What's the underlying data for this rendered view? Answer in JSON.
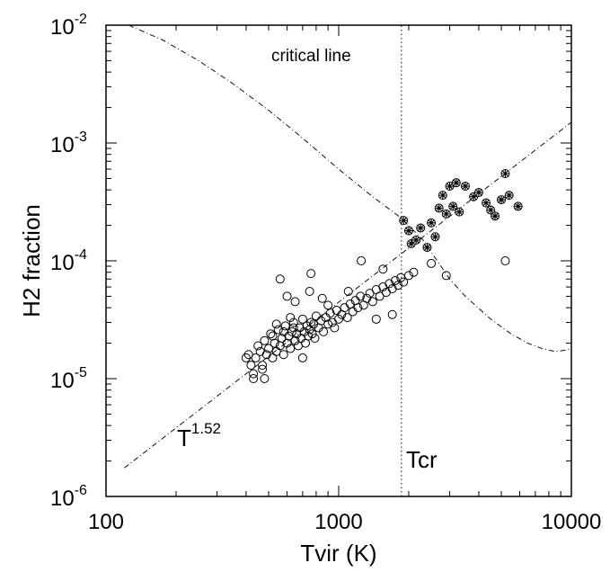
{
  "chart_data": {
    "type": "scatter",
    "xlabel": "Tvir (K)",
    "ylabel": "H2 fraction",
    "x_scale": "log",
    "y_scale": "log",
    "xlim": [
      100,
      10000
    ],
    "ylim": [
      1e-06,
      0.01
    ],
    "x_ticks": [
      {
        "value": 100,
        "label": "100"
      },
      {
        "value": 1000,
        "label": "1000"
      },
      {
        "value": 10000,
        "label": "10000"
      }
    ],
    "y_ticks": [
      {
        "value": 1e-06,
        "base": "10",
        "exp": "-6"
      },
      {
        "value": 1e-05,
        "base": "10",
        "exp": "-5"
      },
      {
        "value": 0.0001,
        "base": "10",
        "exp": "-4"
      },
      {
        "value": 0.001,
        "base": "10",
        "exp": "-3"
      },
      {
        "value": 0.01,
        "base": "10",
        "exp": "-2"
      }
    ],
    "grid": false,
    "annotations": {
      "critical_line": "critical line",
      "power_law_base": "T",
      "power_law_exp": "1.52",
      "tcr": "Tcr"
    },
    "tcr_value": 1860,
    "series": [
      {
        "marker": "open-circle",
        "points": [
          [
            410,
            1.6e-05
          ],
          [
            420,
            1.3e-05
          ],
          [
            430,
            1.1e-05
          ],
          [
            440,
            1.5e-05
          ],
          [
            450,
            1.9e-05
          ],
          [
            460,
            1.7e-05
          ],
          [
            470,
            1.2e-05
          ],
          [
            480,
            2.1e-05
          ],
          [
            490,
            1.6e-05
          ],
          [
            500,
            1.8e-05
          ],
          [
            510,
            2.4e-05
          ],
          [
            520,
            1.5e-05
          ],
          [
            530,
            2e-05
          ],
          [
            540,
            1.7e-05
          ],
          [
            550,
            2.6e-05
          ],
          [
            560,
            1.9e-05
          ],
          [
            570,
            2.2e-05
          ],
          [
            580,
            1.6e-05
          ],
          [
            590,
            2.8e-05
          ],
          [
            600,
            2e-05
          ],
          [
            610,
            2.3e-05
          ],
          [
            620,
            1.8e-05
          ],
          [
            630,
            2.5e-05
          ],
          [
            640,
            3e-05
          ],
          [
            650,
            2.1e-05
          ],
          [
            660,
            2.4e-05
          ],
          [
            670,
            1.9e-05
          ],
          [
            680,
            2.7e-05
          ],
          [
            690,
            2.2e-05
          ],
          [
            700,
            3.2e-05
          ],
          [
            710,
            2.5e-05
          ],
          [
            720,
            2e-05
          ],
          [
            730,
            2.8e-05
          ],
          [
            740,
            2.3e-05
          ],
          [
            750,
            2.6e-05
          ],
          [
            760,
            3e-05
          ],
          [
            770,
            2.4e-05
          ],
          [
            780,
            2.9e-05
          ],
          [
            790,
            2.2e-05
          ],
          [
            800,
            3.4e-05
          ],
          [
            820,
            2.7e-05
          ],
          [
            840,
            3.1e-05
          ],
          [
            860,
            2.5e-05
          ],
          [
            880,
            3.3e-05
          ],
          [
            900,
            2.9e-05
          ],
          [
            920,
            3.6e-05
          ],
          [
            940,
            3e-05
          ],
          [
            960,
            2.7e-05
          ],
          [
            980,
            3.8e-05
          ],
          [
            1000,
            3.2e-05
          ],
          [
            1030,
            3.5e-05
          ],
          [
            1060,
            4e-05
          ],
          [
            1090,
            3.3e-05
          ],
          [
            1120,
            4.3e-05
          ],
          [
            1150,
            3.7e-05
          ],
          [
            1180,
            4.6e-05
          ],
          [
            1210,
            4e-05
          ],
          [
            1240,
            5e-05
          ],
          [
            1280,
            4.2e-05
          ],
          [
            1320,
            4.8e-05
          ],
          [
            1360,
            5.3e-05
          ],
          [
            1400,
            4.5e-05
          ],
          [
            1450,
            5.7e-05
          ],
          [
            1500,
            5e-05
          ],
          [
            1550,
            6e-05
          ],
          [
            1600,
            5.4e-05
          ],
          [
            1650,
            6.4e-05
          ],
          [
            1700,
            5.8e-05
          ],
          [
            1750,
            6.8e-05
          ],
          [
            1800,
            6.2e-05
          ],
          [
            1850,
            7.2e-05
          ],
          [
            1900,
            6.6e-05
          ],
          [
            2000,
            7.5e-05
          ],
          [
            2100,
            8e-05
          ],
          [
            560,
            7e-05
          ],
          [
            600,
            5e-05
          ],
          [
            650,
            4.5e-05
          ],
          [
            750,
            5.5e-05
          ],
          [
            760,
            7.8e-05
          ],
          [
            850,
            4.8e-05
          ],
          [
            1250,
            0.0001
          ],
          [
            1450,
            3.2e-05
          ],
          [
            1700,
            3.5e-05
          ],
          [
            1550,
            8.5e-05
          ],
          [
            2500,
            9.5e-05
          ],
          [
            2900,
            7.5e-05
          ],
          [
            5200,
            0.0001
          ],
          [
            430,
            1e-05
          ],
          [
            470,
            1.3e-05
          ],
          [
            400,
            1.5e-05
          ],
          [
            520,
            2.3e-05
          ],
          [
            480,
            1e-05
          ],
          [
            700,
            1.5e-05
          ],
          [
            640,
            2.7e-05
          ],
          [
            580,
            2.5e-05
          ],
          [
            540,
            2.9e-05
          ],
          [
            620,
            3.3e-05
          ],
          [
            900,
            4.2e-05
          ],
          [
            1100,
            5.5e-05
          ]
        ]
      },
      {
        "marker": "filled-star",
        "points": [
          [
            1900,
            0.00022
          ],
          [
            2000,
            0.00018
          ],
          [
            2050,
            0.00014
          ],
          [
            2150,
            0.00015
          ],
          [
            2250,
            0.00019
          ],
          [
            2400,
            0.00013
          ],
          [
            2500,
            0.00021
          ],
          [
            2600,
            0.00016
          ],
          [
            2700,
            0.00028
          ],
          [
            2800,
            0.00036
          ],
          [
            2900,
            0.00025
          ],
          [
            3000,
            0.00043
          ],
          [
            3100,
            0.00029
          ],
          [
            3200,
            0.00046
          ],
          [
            3300,
            0.00026
          ],
          [
            3500,
            0.00043
          ],
          [
            3800,
            0.00035
          ],
          [
            4000,
            0.00038
          ],
          [
            4300,
            0.00031
          ],
          [
            4500,
            0.00027
          ],
          [
            4700,
            0.00024
          ],
          [
            5000,
            0.00033
          ],
          [
            5200,
            0.00055
          ],
          [
            5400,
            0.00036
          ],
          [
            5900,
            0.00029
          ]
        ]
      }
    ],
    "lines": [
      {
        "style": "dash-dot",
        "name": "critical line",
        "points": [
          [
            125,
            0.01
          ],
          [
            175,
            0.0075
          ],
          [
            250,
            0.005
          ],
          [
            350,
            0.0032
          ],
          [
            500,
            0.0019
          ],
          [
            700,
            0.0011
          ],
          [
            1000,
            0.0006
          ],
          [
            1400,
            0.00035
          ],
          [
            1860,
            0.00023
          ],
          [
            2300,
            0.00015
          ],
          [
            2700,
            9.5e-05
          ],
          [
            3000,
            7e-05
          ],
          [
            3500,
            5e-05
          ],
          [
            4500,
            3.2e-05
          ],
          [
            5500,
            2.4e-05
          ],
          [
            6500,
            2e-05
          ],
          [
            7500,
            1.8e-05
          ],
          [
            8500,
            1.7e-05
          ],
          [
            9500,
            1.75e-05
          ],
          [
            10000,
            1.8e-05
          ]
        ]
      },
      {
        "style": "dash-dot",
        "name": "T^1.52",
        "points": [
          [
            120,
            1.75e-06
          ],
          [
            10000,
            0.0015
          ]
        ]
      },
      {
        "style": "dotted",
        "name": "Tcr",
        "points": [
          [
            1860,
            1e-06
          ],
          [
            1860,
            0.01
          ]
        ]
      }
    ]
  }
}
